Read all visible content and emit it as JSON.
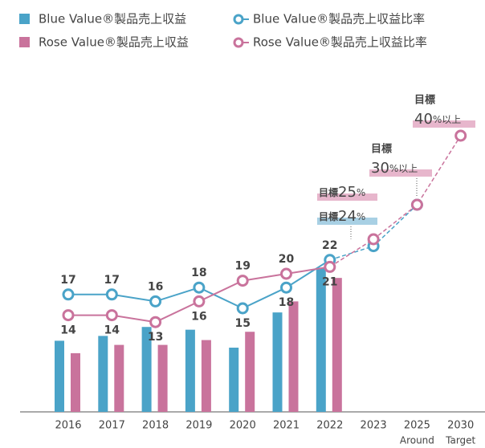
{
  "chart_data": {
    "type": "bar_line",
    "categories": [
      "2016",
      "2017",
      "2018",
      "2019",
      "2020",
      "2021",
      "2022",
      "2023",
      "2025",
      "2030"
    ],
    "category_sublabels": [
      null,
      null,
      null,
      null,
      null,
      null,
      null,
      null,
      "Around",
      "Target"
    ],
    "series": [
      {
        "name": "Blue Value®製品売上収益",
        "type": "bar",
        "color": "#4aa3c8",
        "values": [
          10.3,
          11.0,
          12.3,
          11.9,
          9.3,
          14.4,
          20.8,
          null,
          null,
          null
        ]
      },
      {
        "name": "Blue Value®製品売上収益比率",
        "type": "line",
        "color": "#4aa3c8",
        "values": [
          17,
          17,
          16,
          18,
          15,
          18,
          22,
          24,
          30,
          null
        ],
        "value_labels": [
          "17",
          "17",
          "16",
          "18",
          "15",
          "18",
          "22",
          null,
          null,
          null
        ]
      },
      {
        "name": "Rose Value®製品売上収益",
        "type": "bar",
        "color": "#c9739c",
        "values": [
          8.5,
          9.7,
          9.7,
          10.4,
          11.6,
          16.0,
          19.4,
          null,
          null,
          null
        ]
      },
      {
        "name": "Rose Value®製品売上収益比率",
        "type": "line",
        "color": "#c9739c",
        "values": [
          14,
          14,
          13,
          16,
          19,
          20,
          21,
          25,
          30,
          40
        ],
        "value_labels": [
          "14",
          "14",
          "13",
          "16",
          "19",
          "20",
          "21",
          null,
          null,
          null
        ]
      }
    ],
    "dashed_from": "2022",
    "ylim": [
      0,
      45
    ],
    "annotations": [
      {
        "text": "目標",
        "series": 1,
        "index": 7,
        "unit": "%"
      },
      {
        "text": "目標",
        "series": 3,
        "index": 7,
        "unit": "%"
      },
      {
        "text": "目標",
        "series": 3,
        "index": 8,
        "unit": "%以上"
      },
      {
        "text": "目標",
        "series": 3,
        "index": 9,
        "unit": "%以上"
      }
    ]
  }
}
